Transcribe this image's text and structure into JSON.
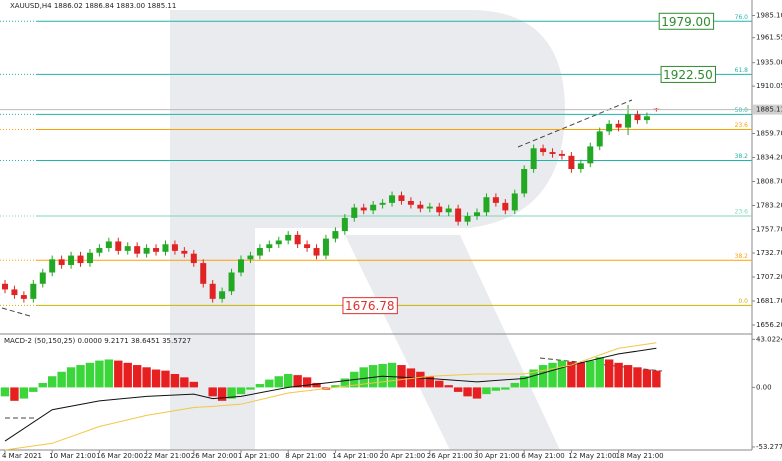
{
  "chart_data": [
    {
      "type": "candlestick",
      "title": "XAUUSD,H4  1886.02 1886.84 1883.00 1885.11",
      "categories": [
        "4 Mar 2021",
        null,
        null,
        null,
        null,
        "10 Mar 21:00",
        null,
        null,
        null,
        null,
        "16 Mar 20:00",
        null,
        null,
        null,
        null,
        "22 Mar 21:00",
        null,
        null,
        null,
        null,
        "26 Mar 20:00",
        null,
        null,
        null,
        null,
        "1 Apr 21:00",
        null,
        null,
        null,
        null,
        "8 Apr 21:00",
        null,
        null,
        null,
        null,
        "14 Apr 21:00",
        null,
        null,
        null,
        null,
        "20 Apr 21:00",
        null,
        null,
        null,
        null,
        "26 Apr 21:00",
        null,
        null,
        null,
        null,
        "30 Apr 21:00",
        null,
        null,
        null,
        null,
        "6 May 21:00",
        null,
        null,
        null,
        null,
        "12 May 21:00",
        null,
        null,
        null,
        null,
        "18 May 21:00",
        null,
        null,
        null,
        null
      ],
      "open": [
        1700,
        1694,
        1688,
        1684,
        1700,
        1712,
        1726,
        1720,
        1730,
        1722,
        1733,
        1738,
        1745,
        1735,
        1740,
        1732,
        1738,
        1734,
        1742,
        1735,
        1732,
        1722,
        1700,
        1684,
        1692,
        1712,
        1726,
        1730,
        1738,
        1742,
        1746,
        1752,
        1742,
        1738,
        1730,
        1748,
        1756,
        1770,
        1781,
        1778,
        1784,
        1786,
        1794,
        1788,
        1784,
        1780,
        1782,
        1776,
        1780,
        1766,
        1772,
        1776,
        1792,
        1786,
        1778,
        1796,
        1822,
        1844,
        1840,
        1838,
        1836,
        1822,
        1828,
        1846,
        1862,
        1870,
        1866,
        1880,
        1874,
        1886.02
      ],
      "high": [
        1704,
        1698,
        1692,
        1704,
        1716,
        1730,
        1730,
        1734,
        1734,
        1737,
        1742,
        1749,
        1749,
        1744,
        1744,
        1742,
        1742,
        1746,
        1746,
        1739,
        1736,
        1726,
        1704,
        1696,
        1716,
        1730,
        1734,
        1742,
        1746,
        1750,
        1756,
        1756,
        1746,
        1742,
        1752,
        1760,
        1774,
        1785,
        1785,
        1788,
        1790,
        1798,
        1798,
        1792,
        1788,
        1786,
        1786,
        1784,
        1784,
        1776,
        1780,
        1796,
        1796,
        1790,
        1800,
        1826,
        1848,
        1848,
        1844,
        1842,
        1840,
        1832,
        1850,
        1866,
        1874,
        1874,
        1890,
        1884,
        1882,
        1886.84
      ],
      "low": [
        1690,
        1684,
        1680,
        1680,
        1696,
        1708,
        1716,
        1716,
        1718,
        1718,
        1729,
        1734,
        1731,
        1731,
        1728,
        1728,
        1730,
        1730,
        1731,
        1728,
        1718,
        1696,
        1680,
        1680,
        1688,
        1708,
        1722,
        1726,
        1734,
        1738,
        1742,
        1738,
        1734,
        1726,
        1726,
        1744,
        1752,
        1766,
        1774,
        1774,
        1780,
        1782,
        1784,
        1780,
        1776,
        1776,
        1772,
        1772,
        1762,
        1762,
        1768,
        1772,
        1782,
        1774,
        1774,
        1792,
        1818,
        1836,
        1834,
        1832,
        1818,
        1818,
        1824,
        1842,
        1858,
        1862,
        1858,
        1870,
        1870,
        1883.0
      ],
      "close": [
        1694,
        1688,
        1684,
        1700,
        1712,
        1726,
        1720,
        1730,
        1722,
        1733,
        1738,
        1745,
        1735,
        1740,
        1732,
        1738,
        1734,
        1742,
        1735,
        1732,
        1722,
        1700,
        1684,
        1692,
        1712,
        1726,
        1730,
        1738,
        1742,
        1746,
        1752,
        1742,
        1738,
        1730,
        1748,
        1756,
        1770,
        1781,
        1778,
        1784,
        1786,
        1794,
        1788,
        1784,
        1780,
        1782,
        1776,
        1780,
        1766,
        1772,
        1776,
        1792,
        1786,
        1778,
        1796,
        1822,
        1844,
        1840,
        1838,
        1836,
        1822,
        1828,
        1846,
        1862,
        1870,
        1866,
        1880,
        1874,
        1878,
        1885.11
      ],
      "up_color": "#22a822",
      "down_color": "#e02424",
      "ylim": [
        1647.7,
        2001.6
      ],
      "yticks": [
        {
          "value": 1985.1,
          "label": "1985.10"
        },
        1961.55,
        {
          "value": 1935,
          "label": "1935.00"
        },
        1910.05,
        {
          "value": 1859.7,
          "label": "1859.70"
        },
        {
          "value": 1834.2,
          "label": "1834.20"
        },
        {
          "value": 1808.7,
          "label": "1808.70"
        },
        {
          "value": 1783.2,
          "label": "1783.20"
        },
        {
          "value": 1757.7,
          "label": "1757.70"
        },
        {
          "value": 1732.7,
          "label": "1732.70"
        },
        {
          "value": 1707.2,
          "label": "1707.20"
        },
        {
          "value": 1681.7,
          "label": "1681.70"
        },
        {
          "value": 1656.2,
          "label": "1656.20"
        }
      ],
      "levels": [
        {
          "value": 1979,
          "label": "76.0",
          "color": "#1fb5a8"
        },
        {
          "value": 1922.5,
          "label": "61.8",
          "color": "#1fb5a8"
        },
        {
          "value": 1880,
          "label": "50.0",
          "color": "#1fb5a8"
        },
        {
          "value": 1864,
          "label": "23.6",
          "color": "#ffa000"
        },
        {
          "value": 1831,
          "label": "38.2",
          "color": "#1fb5a8"
        },
        {
          "value": 1772,
          "label": "23.6",
          "color": "#7fd6b8"
        },
        {
          "value": 1725,
          "label": "38.2",
          "color": "#ffa000"
        },
        {
          "value": 1677,
          "label": "0.0",
          "color": "#c8b400"
        }
      ],
      "annotations": [
        {
          "value": 1979,
          "label": "1979.00",
          "color": "#2e8b2e",
          "x_index": 69.3
        },
        {
          "value": 1922.5,
          "label": "1922.50",
          "color": "#2e8b2e",
          "x_index": 69.5
        },
        {
          "value": 1676.78,
          "label": "1676.78",
          "color": "#e03030",
          "x_index": 35.8
        }
      ]
    },
    {
      "type": "bar",
      "title": "MACD-2 (50,150,25) 0.0000 9.2171 38.6451 35.5727",
      "values": [
        -8,
        -12,
        -10,
        -4,
        4,
        10,
        14,
        18,
        20,
        22,
        24,
        25,
        24,
        22,
        20,
        18,
        16,
        15,
        12,
        9,
        5,
        0,
        -8,
        -12,
        -10,
        -6,
        -2,
        3,
        7,
        10,
        12,
        11,
        9,
        4,
        -2,
        2,
        8,
        14,
        18,
        20,
        21,
        22,
        20,
        17,
        14,
        10,
        6,
        2,
        -4,
        -8,
        -10,
        -6,
        -3,
        -2,
        4,
        10,
        16,
        20,
        22,
        24,
        23,
        22,
        24,
        27,
        25,
        22,
        20,
        18,
        16,
        15
      ],
      "up_color": "#3ad63a",
      "down_color": "#e62020",
      "lines": [
        {
          "color": "#111111",
          "x": [
            0,
            5,
            10,
            15,
            20,
            22,
            25,
            30,
            35,
            40,
            45,
            50,
            55,
            60,
            65,
            69
          ],
          "values": [
            -48,
            -20,
            -12,
            -8,
            -6,
            -10,
            -8,
            0,
            5,
            10,
            8,
            5,
            8,
            20,
            30,
            35
          ]
        },
        {
          "color": "#f2c744",
          "x": [
            0,
            5,
            10,
            15,
            20,
            22,
            25,
            30,
            35,
            40,
            45,
            50,
            55,
            60,
            65,
            69
          ],
          "values": [
            -56,
            -50,
            -35,
            -25,
            -18,
            -17,
            -15,
            -5,
            0,
            5,
            10,
            12,
            12,
            20,
            35,
            40
          ]
        }
      ],
      "ylim": [
        -56,
        46
      ],
      "yticks": [
        43.0224,
        {
          "value": 0,
          "label": "0.00"
        },
        -53.2774
      ]
    }
  ]
}
